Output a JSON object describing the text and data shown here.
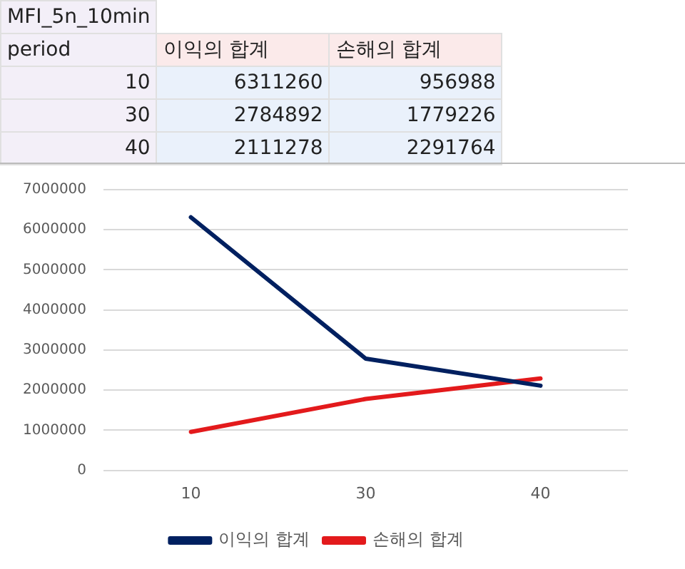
{
  "chart_data": {
    "type": "line",
    "title": "MFI_5n_10min",
    "categories": [
      "10",
      "30",
      "40"
    ],
    "series": [
      {
        "name": "이익의 합계",
        "color": "#002060",
        "values": [
          6311260,
          2784892,
          2111278
        ]
      },
      {
        "name": "손해의 합계",
        "color": "#e31a1c",
        "values": [
          956988,
          1779226,
          2291764
        ]
      }
    ],
    "annotations": [
      "period",
      "6311260",
      "956988",
      "2784892",
      "1779226",
      "2111278",
      "2291764"
    ],
    "ylim": [
      0,
      7000000
    ],
    "yticks": [
      0,
      1000000,
      2000000,
      3000000,
      4000000,
      5000000,
      6000000,
      7000000
    ],
    "grid": "y",
    "legend": "bottom",
    "marker": "none",
    "line_style": "solid"
  }
}
